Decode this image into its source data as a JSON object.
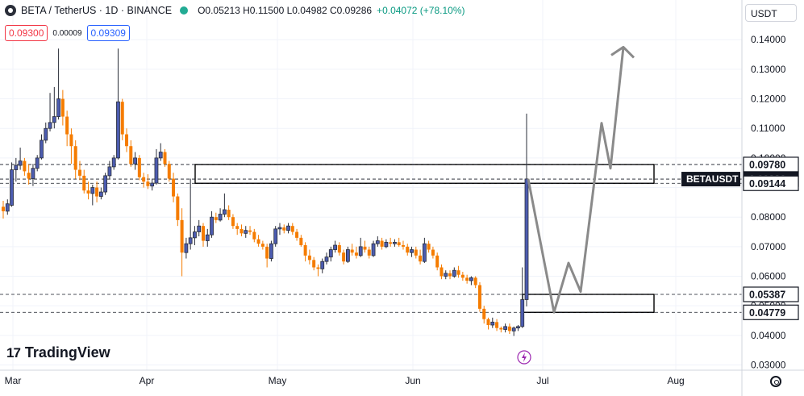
{
  "header": {
    "symbol_line": "BETA / TetherUS · 1D · BINANCE",
    "ohlc": "O0.05213 H0.11500 L0.04982 C0.09286",
    "change": "+0.04072 (+78.10%)"
  },
  "quote": {
    "bid": "0.09300",
    "spread": "0.00009",
    "ask": "0.09309"
  },
  "currency_selector": "USDT",
  "branding": {
    "logo_mark": "17",
    "logo_text": "TradingView"
  },
  "icons": {
    "currency_dropdown": "dropdown",
    "settings": "gear-icon",
    "flash": "lightning-icon"
  },
  "colors": {
    "up": "#089981",
    "down": "#f57c00",
    "up_candle": "#2a2e39",
    "drawing": "#8a8a8a",
    "label_bg": "#131722"
  },
  "chart_data": {
    "type": "candlestick",
    "title": "BETA / TetherUS · 1D · BINANCE",
    "ylim": [
      0.03,
      0.146
    ],
    "y_ticks": [
      "0.14000",
      "0.13000",
      "0.12000",
      "0.11000",
      "0.10000",
      "0.09000",
      "0.08000",
      "0.07000",
      "0.06000",
      "0.05000",
      "0.04000",
      "0.03000"
    ],
    "x_ticks": [
      "Mar",
      "Apr",
      "May",
      "Jun",
      "Jul",
      "Aug"
    ],
    "grid": true,
    "price_labels": [
      {
        "text": "0.09780",
        "value": 0.0978,
        "style": "outline"
      },
      {
        "text": "BETAUSDT",
        "value": 0.09286,
        "style": "dark-tag"
      },
      {
        "text": "0.09286",
        "value": 0.09286,
        "style": "dark"
      },
      {
        "text": "0.09144",
        "value": 0.09144,
        "style": "outline"
      },
      {
        "text": "0.05387",
        "value": 0.05387,
        "style": "outline"
      },
      {
        "text": "0.04779",
        "value": 0.04779,
        "style": "outline"
      }
    ],
    "zones": [
      {
        "name": "resistance",
        "top": 0.0978,
        "bottom": 0.09144
      },
      {
        "name": "support",
        "top": 0.05387,
        "bottom": 0.04779
      }
    ],
    "projection_values": [
      0.0929,
      0.0478,
      0.0645,
      0.0548,
      0.1118,
      0.0965,
      0.1375
    ],
    "candles": [
      [
        0.0835,
        0.0855,
        0.0795,
        0.082
      ],
      [
        0.082,
        0.086,
        0.0808,
        0.0845
      ],
      [
        0.084,
        0.0985,
        0.0835,
        0.096
      ],
      [
        0.096,
        0.1,
        0.092,
        0.0975
      ],
      [
        0.0975,
        0.1035,
        0.096,
        0.099
      ],
      [
        0.099,
        0.1,
        0.094,
        0.0955
      ],
      [
        0.095,
        0.0978,
        0.091,
        0.093
      ],
      [
        0.093,
        0.098,
        0.0905,
        0.0965
      ],
      [
        0.0965,
        0.101,
        0.0955,
        0.1
      ],
      [
        0.1,
        0.108,
        0.0995,
        0.106
      ],
      [
        0.106,
        0.112,
        0.105,
        0.11
      ],
      [
        0.11,
        0.122,
        0.109,
        0.112
      ],
      [
        0.112,
        0.124,
        0.11,
        0.114
      ],
      [
        0.114,
        0.137,
        0.113,
        0.12
      ],
      [
        0.12,
        0.123,
        0.111,
        0.114
      ],
      [
        0.114,
        0.116,
        0.104,
        0.108
      ],
      [
        0.108,
        0.11,
        0.098,
        0.104
      ],
      [
        0.104,
        0.106,
        0.093,
        0.096
      ],
      [
        0.096,
        0.099,
        0.0925,
        0.094
      ],
      [
        0.094,
        0.096,
        0.088,
        0.089
      ],
      [
        0.089,
        0.092,
        0.086,
        0.088
      ],
      [
        0.088,
        0.091,
        0.084,
        0.09
      ],
      [
        0.09,
        0.092,
        0.085,
        0.087
      ],
      [
        0.087,
        0.09,
        0.086,
        0.0885
      ],
      [
        0.0885,
        0.095,
        0.0875,
        0.094
      ],
      [
        0.094,
        0.099,
        0.093,
        0.097
      ],
      [
        0.097,
        0.101,
        0.096,
        0.1
      ],
      [
        0.1,
        0.137,
        0.0995,
        0.119
      ],
      [
        0.119,
        0.12,
        0.106,
        0.108
      ],
      [
        0.108,
        0.11,
        0.102,
        0.104
      ],
      [
        0.104,
        0.106,
        0.097,
        0.098
      ],
      [
        0.098,
        0.102,
        0.096,
        0.1
      ],
      [
        0.1,
        0.101,
        0.0925,
        0.0935
      ],
      [
        0.0935,
        0.095,
        0.09,
        0.092
      ],
      [
        0.092,
        0.0945,
        0.0895,
        0.0905
      ],
      [
        0.0905,
        0.093,
        0.089,
        0.0915
      ],
      [
        0.0915,
        0.103,
        0.091,
        0.1
      ],
      [
        0.1,
        0.105,
        0.099,
        0.102
      ],
      [
        0.102,
        0.103,
        0.097,
        0.098
      ],
      [
        0.098,
        0.099,
        0.092,
        0.093
      ],
      [
        0.093,
        0.095,
        0.085,
        0.087
      ],
      [
        0.087,
        0.088,
        0.077,
        0.079
      ],
      [
        0.079,
        0.083,
        0.06,
        0.068
      ],
      [
        0.068,
        0.073,
        0.066,
        0.071
      ],
      [
        0.071,
        0.093,
        0.069,
        0.073
      ],
      [
        0.073,
        0.077,
        0.0705,
        0.075
      ],
      [
        0.075,
        0.079,
        0.0735,
        0.077
      ],
      [
        0.077,
        0.078,
        0.07,
        0.072
      ],
      [
        0.072,
        0.076,
        0.07,
        0.074
      ],
      [
        0.074,
        0.082,
        0.073,
        0.08
      ],
      [
        0.08,
        0.0815,
        0.078,
        0.079
      ],
      [
        0.079,
        0.083,
        0.0785,
        0.081
      ],
      [
        0.081,
        0.088,
        0.08,
        0.0825
      ],
      [
        0.0825,
        0.084,
        0.079,
        0.08
      ],
      [
        0.08,
        0.081,
        0.076,
        0.077
      ],
      [
        0.077,
        0.078,
        0.074,
        0.076
      ],
      [
        0.076,
        0.0775,
        0.0735,
        0.0745
      ],
      [
        0.0745,
        0.077,
        0.073,
        0.0755
      ],
      [
        0.0755,
        0.077,
        0.074,
        0.075
      ],
      [
        0.075,
        0.076,
        0.0715,
        0.0725
      ],
      [
        0.0725,
        0.074,
        0.07,
        0.071
      ],
      [
        0.071,
        0.072,
        0.069,
        0.07
      ],
      [
        0.07,
        0.071,
        0.063,
        0.066
      ],
      [
        0.066,
        0.072,
        0.065,
        0.071
      ],
      [
        0.071,
        0.077,
        0.07,
        0.076
      ],
      [
        0.076,
        0.078,
        0.074,
        0.0765
      ],
      [
        0.0765,
        0.0775,
        0.0745,
        0.0755
      ],
      [
        0.0755,
        0.078,
        0.0745,
        0.077
      ],
      [
        0.077,
        0.078,
        0.074,
        0.075
      ],
      [
        0.075,
        0.076,
        0.072,
        0.073
      ],
      [
        0.073,
        0.074,
        0.07,
        0.0705
      ],
      [
        0.0705,
        0.0715,
        0.065,
        0.067
      ],
      [
        0.067,
        0.069,
        0.064,
        0.0655
      ],
      [
        0.0655,
        0.0665,
        0.062,
        0.063
      ],
      [
        0.063,
        0.064,
        0.06,
        0.0625
      ],
      [
        0.0625,
        0.066,
        0.061,
        0.065
      ],
      [
        0.065,
        0.068,
        0.064,
        0.0665
      ],
      [
        0.0665,
        0.07,
        0.065,
        0.069
      ],
      [
        0.069,
        0.072,
        0.068,
        0.0705
      ],
      [
        0.0705,
        0.0715,
        0.067,
        0.068
      ],
      [
        0.068,
        0.069,
        0.064,
        0.065
      ],
      [
        0.065,
        0.07,
        0.0645,
        0.069
      ],
      [
        0.069,
        0.071,
        0.067,
        0.068
      ],
      [
        0.068,
        0.07,
        0.066,
        0.067
      ],
      [
        0.067,
        0.073,
        0.0665,
        0.07
      ],
      [
        0.07,
        0.072,
        0.068,
        0.069
      ],
      [
        0.069,
        0.07,
        0.066,
        0.067
      ],
      [
        0.067,
        0.072,
        0.0665,
        0.071
      ],
      [
        0.071,
        0.0735,
        0.07,
        0.072
      ],
      [
        0.072,
        0.073,
        0.069,
        0.07
      ],
      [
        0.07,
        0.0725,
        0.0695,
        0.0715
      ],
      [
        0.0715,
        0.073,
        0.07,
        0.071
      ],
      [
        0.071,
        0.0725,
        0.07,
        0.0715
      ],
      [
        0.0715,
        0.073,
        0.07,
        0.0705
      ],
      [
        0.0705,
        0.072,
        0.069,
        0.07
      ],
      [
        0.07,
        0.071,
        0.067,
        0.068
      ],
      [
        0.068,
        0.07,
        0.0665,
        0.069
      ],
      [
        0.069,
        0.07,
        0.066,
        0.067
      ],
      [
        0.067,
        0.069,
        0.064,
        0.065
      ],
      [
        0.065,
        0.073,
        0.0645,
        0.071
      ],
      [
        0.071,
        0.072,
        0.068,
        0.069
      ],
      [
        0.069,
        0.07,
        0.066,
        0.067
      ],
      [
        0.067,
        0.068,
        0.062,
        0.063
      ],
      [
        0.063,
        0.064,
        0.059,
        0.06
      ],
      [
        0.06,
        0.062,
        0.059,
        0.061
      ],
      [
        0.061,
        0.062,
        0.059,
        0.06
      ],
      [
        0.06,
        0.063,
        0.0595,
        0.062
      ],
      [
        0.062,
        0.0635,
        0.0595,
        0.0605
      ],
      [
        0.0605,
        0.0615,
        0.0585,
        0.0595
      ],
      [
        0.0595,
        0.0605,
        0.0575,
        0.0585
      ],
      [
        0.0585,
        0.06,
        0.057,
        0.0595
      ],
      [
        0.0595,
        0.06,
        0.056,
        0.057
      ],
      [
        0.057,
        0.058,
        0.048,
        0.049
      ],
      [
        0.049,
        0.05,
        0.044,
        0.0455
      ],
      [
        0.0455,
        0.046,
        0.042,
        0.0435
      ],
      [
        0.0435,
        0.046,
        0.0425,
        0.0445
      ],
      [
        0.0445,
        0.0455,
        0.0415,
        0.0425
      ],
      [
        0.0425,
        0.043,
        0.041,
        0.042
      ],
      [
        0.042,
        0.044,
        0.041,
        0.043
      ],
      [
        0.043,
        0.044,
        0.0405,
        0.0415
      ],
      [
        0.0415,
        0.043,
        0.0398,
        0.0425
      ],
      [
        0.0425,
        0.0435,
        0.0415,
        0.043
      ],
      [
        0.043,
        0.063,
        0.0425,
        0.0521
      ],
      [
        0.0521,
        0.115,
        0.0498,
        0.0929
      ]
    ]
  }
}
